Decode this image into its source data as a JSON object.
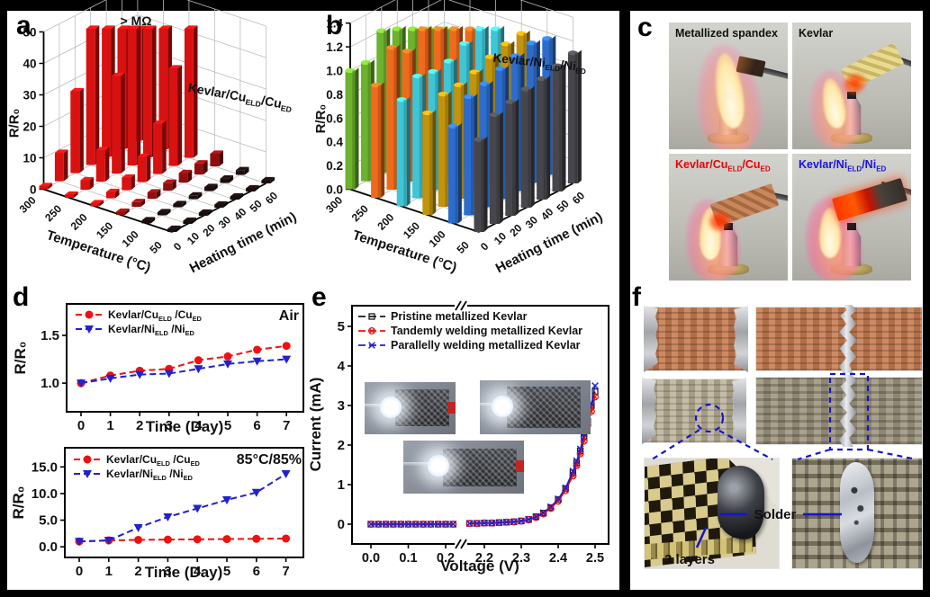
{
  "figure": {
    "letters": {
      "a": "a",
      "b": "b",
      "c": "c",
      "d": "d",
      "e": "e",
      "f": "f"
    }
  },
  "panel_c": {
    "photos": [
      {
        "label": "Metallized spandex",
        "label_color": "#111111"
      },
      {
        "label": "Kevlar",
        "label_color": "#111111"
      },
      {
        "label": "Kevlar/Cu~ELD~/Cu~ED~",
        "label_color": "#e8000b"
      },
      {
        "label": "Kevlar/Ni~ELD~/Ni~ED~",
        "label_color": "#1a12e0"
      }
    ]
  },
  "panel_f": {
    "solder_label": "Solder",
    "layers_label": "3 layers",
    "annotation_color": "#1515cc"
  },
  "chart_data": [
    {
      "id": "a",
      "type": "bar3d",
      "annotation": "> MΩ",
      "series_label": "Kevlar/Cu~ELD~/Cu~ED~",
      "series_label_color": "#e00000",
      "zlabel": "R/R₀",
      "z_ticks": [
        "0",
        "10",
        "20",
        "30",
        "40",
        "50"
      ],
      "zmax": 50,
      "offscale_value": 56,
      "x_label": "Heating time (min)",
      "x_ticks": [
        "0",
        "10",
        "20",
        "30",
        "40",
        "50",
        "60"
      ],
      "y_label": "Temperature (°C)",
      "y_ticks": [
        "300",
        "250",
        "200",
        "150",
        "100",
        "50"
      ],
      "row_colors": [
        "#d81111",
        "#d81111",
        "#d81111",
        "#8f0f0f",
        "#1c0d0d",
        "#1c0d0d"
      ],
      "values": [
        [
          1,
          9,
          26,
          56,
          56,
          56,
          56
        ],
        [
          1,
          3,
          10,
          31,
          56,
          56,
          51
        ],
        [
          1,
          2,
          4,
          8,
          16,
          31,
          46
        ],
        [
          1,
          1.5,
          2,
          2.5,
          3,
          3.5,
          4
        ],
        [
          1,
          1,
          1,
          1.2,
          1.3,
          1.4,
          1.5
        ],
        [
          1,
          1,
          1,
          1,
          1,
          1,
          1
        ]
      ]
    },
    {
      "id": "b",
      "type": "bar3d",
      "annotation": "",
      "series_label": "Kevlar/Ni~ELD~/Ni~ED~",
      "series_label_color": "#1a12e0",
      "zlabel": "R/R₀",
      "z_ticks": [
        "0.0",
        "0.2",
        "0.4",
        "0.6",
        "0.8",
        "1.0",
        "1.2",
        "1.4"
      ],
      "zmax": 1.4,
      "offscale_value": 99,
      "x_label": "Heating time (min)",
      "x_ticks": [
        "0",
        "10",
        "20",
        "30",
        "40",
        "50",
        "60"
      ],
      "y_label": "Temperature (°C)",
      "y_ticks": [
        "300",
        "250",
        "200",
        "150",
        "100",
        "50"
      ],
      "row_colors": [
        "#6cb22d",
        "#f06a1c",
        "#3fc6d6",
        "#c2930c",
        "#2d6ccc",
        "#46464c"
      ],
      "values": [
        [
          1.0,
          1.0,
          1.2,
          1.18,
          1.1,
          1.28,
          1.32
        ],
        [
          0.95,
          1.2,
          1.1,
          1.22,
          1.3,
          1.4,
          1.42
        ],
        [
          0.9,
          1.03,
          1.0,
          1.02,
          1.1,
          1.2,
          1.2
        ],
        [
          0.86,
          0.95,
          0.96,
          1.0,
          1.06,
          1.1,
          1.12
        ],
        [
          0.82,
          1.0,
          1.04,
          1.1,
          1.14,
          1.18,
          1.15
        ],
        [
          0.78,
          0.92,
          0.96,
          1.0,
          1.02,
          1.06,
          1.1
        ]
      ]
    },
    {
      "id": "d_air",
      "type": "line",
      "corner_label": "Air",
      "xlabel": "Time (Day)",
      "ylabel": "R/R₀",
      "x": [
        0,
        1,
        2,
        3,
        4,
        5,
        6,
        7
      ],
      "y_ticks": [
        "1.0",
        "1.5"
      ],
      "series": [
        {
          "name": "Kevlar/Cu~ELD~ /Cu~ED~",
          "color": "#ee1111",
          "marker": "circle",
          "values": [
            1.0,
            1.08,
            1.13,
            1.15,
            1.24,
            1.28,
            1.35,
            1.39
          ]
        },
        {
          "name": "Kevlar/Ni~ELD~ /Ni~ED~",
          "color": "#2121cf",
          "marker": "triangle",
          "values": [
            1.0,
            1.05,
            1.09,
            1.1,
            1.15,
            1.2,
            1.23,
            1.25
          ]
        }
      ]
    },
    {
      "id": "d_85",
      "type": "line",
      "corner_label": "85°C/85%",
      "xlabel": "Time (Day)",
      "ylabel": "R/R₀",
      "x": [
        0,
        1,
        2,
        3,
        4,
        5,
        6,
        7
      ],
      "y_ticks": [
        "0.0",
        "5.0",
        "10.0",
        "15.0"
      ],
      "series": [
        {
          "name": "Kevlar/Cu~ELD~ /Cu~ED~",
          "color": "#ee1111",
          "marker": "circle",
          "values": [
            1.0,
            1.2,
            1.3,
            1.35,
            1.4,
            1.45,
            1.5,
            1.55
          ]
        },
        {
          "name": "Kevlar/Ni~ELD~ /Ni~ED~",
          "color": "#2121cf",
          "marker": "triangle",
          "values": [
            1.0,
            1.2,
            3.6,
            5.6,
            7.2,
            8.8,
            10.2,
            13.7
          ]
        }
      ]
    },
    {
      "id": "e",
      "type": "scatter_broken_axis",
      "xlabel": "Voltage (V)",
      "ylabel": "Current (mA)",
      "y_ticks": [
        "0",
        "1",
        "2",
        "3",
        "4",
        "5"
      ],
      "x_ticks_left": [
        "0.0",
        "0.1",
        "0.2"
      ],
      "x_ticks_right": [
        "2.2",
        "2.3",
        "2.4",
        "2.5"
      ],
      "series": [
        {
          "name": "Pristine metallized Kevlar",
          "color": "#1a1a1a",
          "marker": "square",
          "points": [
            [
              0.0,
              0
            ],
            [
              0.02,
              0
            ],
            [
              0.04,
              0
            ],
            [
              0.06,
              0
            ],
            [
              0.08,
              0
            ],
            [
              0.1,
              0
            ],
            [
              0.12,
              0
            ],
            [
              0.14,
              0
            ],
            [
              0.16,
              0
            ],
            [
              0.18,
              0
            ],
            [
              0.2,
              0
            ],
            [
              0.22,
              0
            ],
            [
              2.16,
              0.02
            ],
            [
              2.18,
              0.02
            ],
            [
              2.2,
              0.03
            ],
            [
              2.22,
              0.03
            ],
            [
              2.24,
              0.04
            ],
            [
              2.26,
              0.05
            ],
            [
              2.28,
              0.06
            ],
            [
              2.3,
              0.08
            ],
            [
              2.32,
              0.12
            ],
            [
              2.34,
              0.19
            ],
            [
              2.36,
              0.28
            ],
            [
              2.38,
              0.42
            ],
            [
              2.4,
              0.62
            ],
            [
              2.42,
              0.9
            ],
            [
              2.44,
              1.3
            ],
            [
              2.45,
              1.55
            ],
            [
              2.46,
              1.85
            ],
            [
              2.47,
              2.2
            ],
            [
              2.48,
              2.6
            ],
            [
              2.49,
              3.0
            ],
            [
              2.5,
              3.35
            ]
          ]
        },
        {
          "name": "Tandemly welding metallized Kevlar",
          "color": "#e81010",
          "marker": "circle-x",
          "points": [
            [
              0.0,
              0
            ],
            [
              0.02,
              0
            ],
            [
              0.04,
              0
            ],
            [
              0.06,
              0
            ],
            [
              0.08,
              0
            ],
            [
              0.1,
              0
            ],
            [
              0.12,
              0
            ],
            [
              0.14,
              0
            ],
            [
              0.16,
              0
            ],
            [
              0.18,
              0
            ],
            [
              0.2,
              0
            ],
            [
              0.22,
              0
            ],
            [
              2.16,
              0.02
            ],
            [
              2.18,
              0.02
            ],
            [
              2.2,
              0.03
            ],
            [
              2.22,
              0.03
            ],
            [
              2.24,
              0.04
            ],
            [
              2.26,
              0.05
            ],
            [
              2.28,
              0.06
            ],
            [
              2.3,
              0.08
            ],
            [
              2.32,
              0.11
            ],
            [
              2.34,
              0.17
            ],
            [
              2.36,
              0.26
            ],
            [
              2.38,
              0.4
            ],
            [
              2.4,
              0.58
            ],
            [
              2.42,
              0.85
            ],
            [
              2.44,
              1.22
            ],
            [
              2.45,
              1.48
            ],
            [
              2.46,
              1.78
            ],
            [
              2.47,
              2.1
            ],
            [
              2.48,
              2.5
            ],
            [
              2.49,
              2.85
            ],
            [
              2.5,
              3.22
            ]
          ]
        },
        {
          "name": "Parallelly welding metallized Kevlar",
          "color": "#2020d0",
          "marker": "x",
          "points": [
            [
              0.0,
              0
            ],
            [
              0.02,
              0
            ],
            [
              0.04,
              0
            ],
            [
              0.06,
              0
            ],
            [
              0.08,
              0
            ],
            [
              0.1,
              0
            ],
            [
              0.12,
              0
            ],
            [
              0.14,
              0
            ],
            [
              0.16,
              0
            ],
            [
              0.18,
              0
            ],
            [
              0.2,
              0
            ],
            [
              0.22,
              0
            ],
            [
              2.16,
              0.02
            ],
            [
              2.18,
              0.02
            ],
            [
              2.2,
              0.03
            ],
            [
              2.22,
              0.03
            ],
            [
              2.24,
              0.04
            ],
            [
              2.26,
              0.05
            ],
            [
              2.28,
              0.06
            ],
            [
              2.3,
              0.08
            ],
            [
              2.32,
              0.12
            ],
            [
              2.34,
              0.19
            ],
            [
              2.36,
              0.29
            ],
            [
              2.38,
              0.44
            ],
            [
              2.4,
              0.64
            ],
            [
              2.42,
              0.92
            ],
            [
              2.44,
              1.34
            ],
            [
              2.45,
              1.6
            ],
            [
              2.46,
              1.9
            ],
            [
              2.47,
              2.28
            ],
            [
              2.48,
              2.68
            ],
            [
              2.49,
              3.05
            ],
            [
              2.5,
              3.5
            ]
          ]
        }
      ]
    }
  ]
}
